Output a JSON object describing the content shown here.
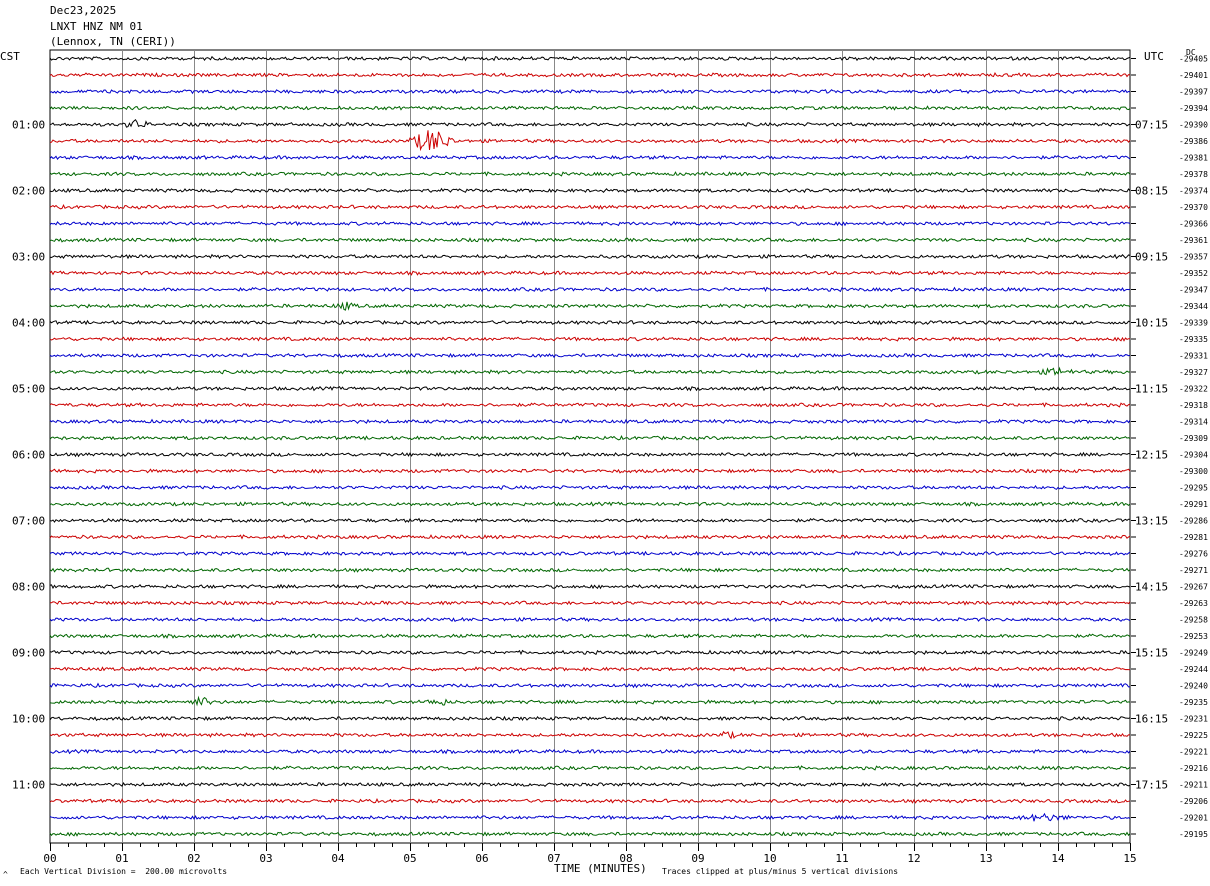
{
  "header": {
    "date": "Dec23,2025",
    "station": "LNXT HNZ NM 01",
    "location": "(Lennox, TN (CERI))"
  },
  "left_timezone": "CST",
  "right_timezone": "UTC",
  "right_header": "DC",
  "footer": {
    "scale_note": "Each Vertical Division =  200.00 microvolts",
    "clip_note": "Traces clipped at plus/minus 5 vertical divisions",
    "corner_mark": "^"
  },
  "chart_data": {
    "type": "line",
    "title": "LNXT HNZ NM 01",
    "xlabel": "TIME (MINUTES)",
    "xlim": [
      0,
      15
    ],
    "x_ticks": [
      "00",
      "01",
      "02",
      "03",
      "04",
      "05",
      "06",
      "07",
      "08",
      "09",
      "10",
      "11",
      "12",
      "13",
      "14",
      "15"
    ],
    "left_hour_labels": [
      "01:00",
      "02:00",
      "03:00",
      "04:00",
      "05:00",
      "06:00",
      "07:00",
      "08:00",
      "09:00",
      "10:00",
      "11:00"
    ],
    "right_hour_labels": [
      "07:15",
      "08:15",
      "09:15",
      "10:15",
      "11:15",
      "12:15",
      "13:15",
      "14:15",
      "15:15",
      "16:15",
      "17:15"
    ],
    "trace_colors": [
      "#000000",
      "#cc0000",
      "#0000cc",
      "#006600"
    ],
    "dc_offsets": [
      -29405,
      -29401,
      -29397,
      -29394,
      -29390,
      -29386,
      -29381,
      -29378,
      -29374,
      -29370,
      -29366,
      -29361,
      -29357,
      -29352,
      -29347,
      -29344,
      -29339,
      -29335,
      -29331,
      -29327,
      -29322,
      -29318,
      -29314,
      -29309,
      -29304,
      -29300,
      -29295,
      -29291,
      -29286,
      -29281,
      -29276,
      -29271,
      -29267,
      -29263,
      -29258,
      -29253,
      -29249,
      -29244,
      -29240,
      -29235,
      -29231,
      -29225,
      -29221,
      -29216,
      -29211,
      -29206,
      -29201,
      -29195
    ],
    "events": [
      {
        "trace": 5,
        "minute": 5.3,
        "amplitude": 12,
        "width": 0.35
      },
      {
        "trace": 4,
        "minute": 1.2,
        "amplitude": 4,
        "width": 0.2
      },
      {
        "trace": 15,
        "minute": 4.1,
        "amplitude": 3,
        "width": 0.2
      },
      {
        "trace": 39,
        "minute": 2.1,
        "amplitude": 4,
        "width": 0.2
      },
      {
        "trace": 39,
        "minute": 5.4,
        "amplitude": 3,
        "width": 0.2
      },
      {
        "trace": 19,
        "minute": 14.0,
        "amplitude": 3,
        "width": 0.3
      },
      {
        "trace": 41,
        "minute": 9.4,
        "amplitude": 3,
        "width": 0.15
      },
      {
        "trace": 46,
        "minute": 13.8,
        "amplitude": 3,
        "width": 0.4
      }
    ]
  }
}
